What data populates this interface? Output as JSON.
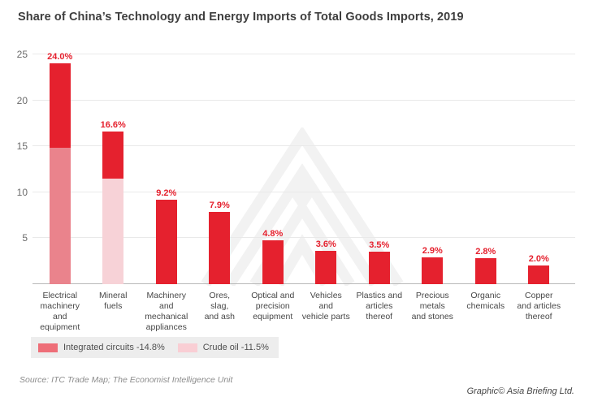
{
  "chart_data": {
    "type": "bar",
    "title": "Share of China’s Technology and Energy Imports of Total Goods Imports, 2019",
    "categories": [
      "Electrical\nmachinery\nand equipment",
      "Mineral\nfuels",
      "Machinery and\nmechanical\nappliances",
      "Ores,\nslag,\nand ash",
      "Optical and\nprecision\nequipment",
      "Vehicles\nand\nvehicle parts",
      "Plastics and\narticles\nthereof",
      "Precious\nmetals\nand stones",
      "Organic\nchemicals",
      "Copper\nand articles\nthereof"
    ],
    "values": [
      24.0,
      16.6,
      9.2,
      7.9,
      4.8,
      3.6,
      3.5,
      2.9,
      2.8,
      2.0
    ],
    "value_labels": [
      "24.0%",
      "16.6%",
      "9.2%",
      "7.9%",
      "4.8%",
      "3.6%",
      "3.5%",
      "2.9%",
      "2.8%",
      "2.0%"
    ],
    "stacks": [
      {
        "index": 0,
        "name": "Integrated circuits",
        "value": 14.8,
        "color": "#ea838c"
      },
      {
        "index": 1,
        "name": "Crude oil",
        "value": 11.5,
        "color": "#f7d2d7"
      }
    ],
    "y_axis": {
      "min": 0,
      "max": 25,
      "ticks": [
        5,
        10,
        15,
        20,
        25
      ],
      "gridlines": true
    },
    "bar_color": "#e5212e",
    "value_label_color": "#e5212e",
    "legend_position": "bottom-left"
  },
  "legend": {
    "items": [
      {
        "label": "Integrated circuits -14.8%",
        "color": "#ee6e78"
      },
      {
        "label": "Crude oil -11.5%",
        "color": "#f9ced4"
      }
    ]
  },
  "footer": {
    "source": "Source: ITC Trade Map; The Economist Intelligence Unit",
    "credit": "Graphic© Asia Briefing Ltd."
  },
  "watermark": {
    "name": "asia-briefing-logo",
    "color": "#f2f2f2"
  }
}
